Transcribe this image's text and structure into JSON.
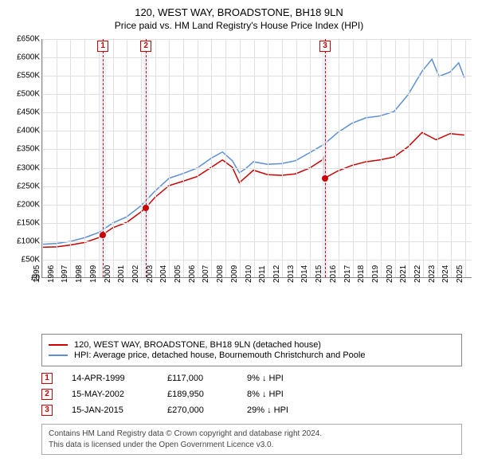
{
  "title": "120, WEST WAY, BROADSTONE, BH18 9LN",
  "subtitle": "Price paid vs. HM Land Registry's House Price Index (HPI)",
  "chart": {
    "type": "line",
    "background_color": "#ffffff",
    "grid_color": "#e0e0e0",
    "axis_color": "#888888",
    "xlim": [
      1995,
      2025.5
    ],
    "ylim": [
      0,
      650000
    ],
    "y_ticks": [
      0,
      50000,
      100000,
      150000,
      200000,
      250000,
      300000,
      350000,
      400000,
      450000,
      500000,
      550000,
      600000,
      650000
    ],
    "y_tick_labels": [
      "£0",
      "£50K",
      "£100K",
      "£150K",
      "£200K",
      "£250K",
      "£300K",
      "£350K",
      "£400K",
      "£450K",
      "£500K",
      "£550K",
      "£600K",
      "£650K"
    ],
    "x_ticks": [
      1995,
      1996,
      1997,
      1998,
      1999,
      2000,
      2001,
      2002,
      2003,
      2004,
      2005,
      2006,
      2007,
      2008,
      2009,
      2010,
      2011,
      2012,
      2013,
      2014,
      2015,
      2016,
      2017,
      2018,
      2019,
      2020,
      2021,
      2022,
      2023,
      2024,
      2025
    ],
    "shaded_bands": [
      {
        "from": 1999.1,
        "to": 1999.5
      },
      {
        "from": 2002.15,
        "to": 2002.55
      },
      {
        "from": 2014.8,
        "to": 2015.2
      }
    ],
    "vertical_dashed": [
      {
        "x": 1999.3,
        "color": "#cc0000"
      },
      {
        "x": 2002.35,
        "color": "#cc0000"
      },
      {
        "x": 2015.05,
        "color": "#cc0000"
      }
    ],
    "marker_boxes": [
      {
        "label": "1",
        "x": 1999.3
      },
      {
        "label": "2",
        "x": 2002.35
      },
      {
        "label": "3",
        "x": 2015.05
      }
    ],
    "series": [
      {
        "name": "price_paid",
        "color": "#cc0000",
        "width": 1.5,
        "data": [
          [
            1995.0,
            82000
          ],
          [
            1996.0,
            83000
          ],
          [
            1997.0,
            88000
          ],
          [
            1998.0,
            95000
          ],
          [
            1999.0,
            108000
          ],
          [
            1999.3,
            117000
          ],
          [
            2000.0,
            135000
          ],
          [
            2001.0,
            150000
          ],
          [
            2002.0,
            178000
          ],
          [
            2002.35,
            189950
          ],
          [
            2003.0,
            218000
          ],
          [
            2004.0,
            250000
          ],
          [
            2005.0,
            262000
          ],
          [
            2006.0,
            275000
          ],
          [
            2007.0,
            300000
          ],
          [
            2007.8,
            320000
          ],
          [
            2008.5,
            300000
          ],
          [
            2009.0,
            258000
          ],
          [
            2009.5,
            275000
          ],
          [
            2010.0,
            292000
          ],
          [
            2011.0,
            280000
          ],
          [
            2012.0,
            278000
          ],
          [
            2013.0,
            282000
          ],
          [
            2014.0,
            298000
          ],
          [
            2014.9,
            320000
          ],
          [
            2015.04,
            330000
          ],
          [
            2015.05,
            270000
          ],
          [
            2016.0,
            290000
          ],
          [
            2017.0,
            305000
          ],
          [
            2018.0,
            315000
          ],
          [
            2019.0,
            320000
          ],
          [
            2020.0,
            328000
          ],
          [
            2021.0,
            356000
          ],
          [
            2022.0,
            395000
          ],
          [
            2023.0,
            375000
          ],
          [
            2024.0,
            392000
          ],
          [
            2025.0,
            388000
          ]
        ],
        "sale_points": [
          {
            "x": 1999.3,
            "y": 117000
          },
          {
            "x": 2002.35,
            "y": 189950
          },
          {
            "x": 2015.05,
            "y": 270000
          }
        ]
      },
      {
        "name": "hpi",
        "color": "#5b8fd6",
        "width": 1.5,
        "data": [
          [
            1995.0,
            90000
          ],
          [
            1996.0,
            92000
          ],
          [
            1997.0,
            98000
          ],
          [
            1998.0,
            108000
          ],
          [
            1999.0,
            122000
          ],
          [
            2000.0,
            148000
          ],
          [
            2001.0,
            165000
          ],
          [
            2002.0,
            195000
          ],
          [
            2003.0,
            235000
          ],
          [
            2004.0,
            270000
          ],
          [
            2005.0,
            283000
          ],
          [
            2006.0,
            298000
          ],
          [
            2007.0,
            325000
          ],
          [
            2007.8,
            342000
          ],
          [
            2008.5,
            318000
          ],
          [
            2009.0,
            285000
          ],
          [
            2009.5,
            298000
          ],
          [
            2010.0,
            315000
          ],
          [
            2011.0,
            308000
          ],
          [
            2012.0,
            310000
          ],
          [
            2013.0,
            318000
          ],
          [
            2014.0,
            340000
          ],
          [
            2015.0,
            362000
          ],
          [
            2016.0,
            395000
          ],
          [
            2017.0,
            420000
          ],
          [
            2018.0,
            435000
          ],
          [
            2019.0,
            440000
          ],
          [
            2020.0,
            452000
          ],
          [
            2021.0,
            498000
          ],
          [
            2022.0,
            562000
          ],
          [
            2022.7,
            595000
          ],
          [
            2023.2,
            548000
          ],
          [
            2024.0,
            560000
          ],
          [
            2024.6,
            585000
          ],
          [
            2025.0,
            545000
          ]
        ]
      }
    ]
  },
  "legend": [
    {
      "color": "#cc0000",
      "label": "120, WEST WAY, BROADSTONE, BH18 9LN (detached house)"
    },
    {
      "color": "#5b8fd6",
      "label": "HPI: Average price, detached house, Bournemouth Christchurch and Poole"
    }
  ],
  "transactions": [
    {
      "n": "1",
      "date": "14-APR-1999",
      "price": "£117,000",
      "diff": "9% ↓ HPI"
    },
    {
      "n": "2",
      "date": "15-MAY-2002",
      "price": "£189,950",
      "diff": "8% ↓ HPI"
    },
    {
      "n": "3",
      "date": "15-JAN-2015",
      "price": "£270,000",
      "diff": "29% ↓ HPI"
    }
  ],
  "footer_line1": "Contains HM Land Registry data © Crown copyright and database right 2024.",
  "footer_line2": "This data is licensed under the Open Government Licence v3.0."
}
